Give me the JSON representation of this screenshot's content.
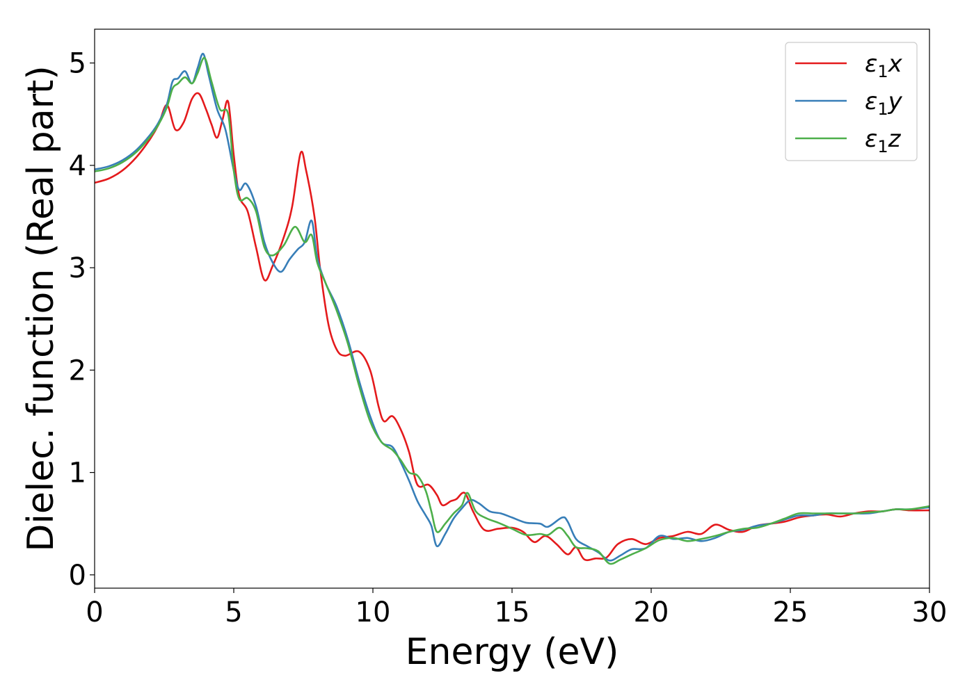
{
  "chart_data": {
    "type": "line",
    "title": "",
    "xlabel": "Energy (eV)",
    "ylabel": "Dielec. function (Real part)",
    "xlim": [
      0,
      30
    ],
    "ylim": [
      -0.13,
      5.33
    ],
    "xticks": [
      0,
      5,
      10,
      15,
      20,
      25,
      30
    ],
    "yticks": [
      0,
      1,
      2,
      3,
      4,
      5
    ],
    "grid": false,
    "legend_position": "top-right",
    "series": [
      {
        "name": "ε1x",
        "legend_symbol": "ε",
        "legend_sub": "1",
        "legend_var": "x",
        "color": "#e41a1c",
        "x": [
          0,
          0.5,
          1,
          1.5,
          2,
          2.3,
          2.6,
          2.9,
          3.2,
          3.5,
          3.75,
          4,
          4.2,
          4.4,
          4.6,
          4.8,
          5,
          5.2,
          5.5,
          5.8,
          6.1,
          6.4,
          6.8,
          7.1,
          7.4,
          7.6,
          7.9,
          8.1,
          8.4,
          8.7,
          9,
          9.5,
          9.9,
          10.2,
          10.4,
          10.7,
          11,
          11.3,
          11.6,
          12,
          12.3,
          12.5,
          12.8,
          13,
          13.3,
          13.6,
          14,
          14.5,
          15,
          15.4,
          15.8,
          16.2,
          16.6,
          17,
          17.3,
          17.6,
          18,
          18.4,
          18.8,
          19.3,
          19.8,
          20.3,
          20.8,
          21.3,
          21.8,
          22.3,
          22.8,
          23.3,
          23.8,
          24.3,
          24.8,
          25.3,
          25.8,
          26.3,
          26.8,
          27.3,
          27.8,
          28.3,
          28.8,
          29.3,
          30
        ],
        "y": [
          3.83,
          3.87,
          3.95,
          4.08,
          4.26,
          4.4,
          4.59,
          4.35,
          4.42,
          4.65,
          4.7,
          4.55,
          4.4,
          4.27,
          4.45,
          4.62,
          4.1,
          3.7,
          3.55,
          3.2,
          2.88,
          3.02,
          3.3,
          3.6,
          4.12,
          3.95,
          3.5,
          3.0,
          2.45,
          2.2,
          2.14,
          2.18,
          2.0,
          1.65,
          1.5,
          1.55,
          1.42,
          1.2,
          0.88,
          0.88,
          0.78,
          0.68,
          0.72,
          0.74,
          0.8,
          0.62,
          0.44,
          0.45,
          0.46,
          0.42,
          0.32,
          0.38,
          0.3,
          0.2,
          0.27,
          0.15,
          0.16,
          0.17,
          0.3,
          0.35,
          0.3,
          0.36,
          0.38,
          0.42,
          0.4,
          0.49,
          0.44,
          0.42,
          0.48,
          0.5,
          0.52,
          0.56,
          0.58,
          0.59,
          0.57,
          0.6,
          0.62,
          0.62,
          0.64,
          0.63,
          0.63
        ]
      },
      {
        "name": "ε1y",
        "legend_symbol": "ε",
        "legend_sub": "1",
        "legend_var": "y",
        "color": "#377eb8",
        "x": [
          0,
          0.5,
          1,
          1.5,
          2,
          2.3,
          2.6,
          2.8,
          3.0,
          3.25,
          3.5,
          3.7,
          3.9,
          4.1,
          4.4,
          4.7,
          5.0,
          5.2,
          5.45,
          5.8,
          6.1,
          6.4,
          6.7,
          7.0,
          7.3,
          7.55,
          7.8,
          8.0,
          8.3,
          8.7,
          9.1,
          9.5,
          9.9,
          10.3,
          10.7,
          11.0,
          11.3,
          11.6,
          11.9,
          12.1,
          12.3,
          12.6,
          12.9,
          13.2,
          13.5,
          13.8,
          14.2,
          14.6,
          15.0,
          15.5,
          16.0,
          16.3,
          16.8,
          17.0,
          17.3,
          17.7,
          18.1,
          18.5,
          18.9,
          19.3,
          19.8,
          20.3,
          20.8,
          21.3,
          21.8,
          22.3,
          22.8,
          23.3,
          23.8,
          24.3,
          24.8,
          25.3,
          25.8,
          26.3,
          26.8,
          27.3,
          27.8,
          28.3,
          28.8,
          29.3,
          30
        ],
        "y": [
          3.96,
          3.99,
          4.05,
          4.15,
          4.3,
          4.42,
          4.6,
          4.82,
          4.85,
          4.92,
          4.8,
          4.95,
          5.09,
          4.88,
          4.55,
          4.35,
          3.95,
          3.76,
          3.82,
          3.6,
          3.25,
          3.05,
          2.96,
          3.08,
          3.18,
          3.25,
          3.46,
          3.1,
          2.85,
          2.62,
          2.3,
          1.9,
          1.55,
          1.3,
          1.25,
          1.1,
          0.92,
          0.72,
          0.58,
          0.48,
          0.28,
          0.4,
          0.55,
          0.65,
          0.73,
          0.7,
          0.62,
          0.6,
          0.56,
          0.51,
          0.5,
          0.47,
          0.56,
          0.52,
          0.35,
          0.28,
          0.22,
          0.14,
          0.19,
          0.25,
          0.26,
          0.38,
          0.35,
          0.36,
          0.33,
          0.36,
          0.42,
          0.44,
          0.48,
          0.5,
          0.54,
          0.58,
          0.58,
          0.6,
          0.6,
          0.6,
          0.6,
          0.62,
          0.64,
          0.64,
          0.66
        ]
      },
      {
        "name": "ε1z",
        "legend_symbol": "ε",
        "legend_sub": "1",
        "legend_var": "z",
        "color": "#4daf4a",
        "x": [
          0,
          0.5,
          1,
          1.5,
          2,
          2.3,
          2.6,
          2.8,
          3.0,
          3.25,
          3.5,
          3.7,
          3.95,
          4.2,
          4.5,
          4.8,
          5.0,
          5.2,
          5.5,
          5.8,
          6.1,
          6.4,
          6.8,
          7.2,
          7.55,
          7.8,
          8.0,
          8.3,
          8.7,
          9.1,
          9.5,
          9.9,
          10.3,
          10.7,
          11.0,
          11.3,
          11.6,
          11.9,
          12.1,
          12.3,
          12.6,
          12.9,
          13.2,
          13.4,
          13.7,
          14.1,
          14.5,
          15.0,
          15.5,
          16.0,
          16.3,
          16.7,
          17.0,
          17.3,
          17.7,
          18.1,
          18.5,
          18.9,
          19.3,
          19.8,
          20.3,
          20.8,
          21.3,
          21.8,
          22.3,
          22.8,
          23.3,
          23.8,
          24.3,
          24.8,
          25.3,
          25.8,
          26.3,
          26.8,
          27.3,
          27.8,
          28.3,
          28.8,
          29.3,
          30
        ],
        "y": [
          3.94,
          3.97,
          4.03,
          4.13,
          4.28,
          4.4,
          4.57,
          4.75,
          4.8,
          4.86,
          4.8,
          4.9,
          5.05,
          4.82,
          4.55,
          4.5,
          3.95,
          3.67,
          3.68,
          3.55,
          3.2,
          3.12,
          3.22,
          3.4,
          3.25,
          3.32,
          3.05,
          2.85,
          2.58,
          2.26,
          1.85,
          1.5,
          1.3,
          1.22,
          1.12,
          1.0,
          0.97,
          0.82,
          0.62,
          0.42,
          0.5,
          0.6,
          0.68,
          0.8,
          0.62,
          0.55,
          0.51,
          0.45,
          0.39,
          0.4,
          0.39,
          0.46,
          0.38,
          0.27,
          0.26,
          0.23,
          0.11,
          0.15,
          0.2,
          0.26,
          0.34,
          0.36,
          0.33,
          0.35,
          0.38,
          0.42,
          0.45,
          0.46,
          0.5,
          0.55,
          0.6,
          0.6,
          0.6,
          0.6,
          0.6,
          0.61,
          0.62,
          0.64,
          0.64,
          0.67
        ]
      }
    ]
  }
}
